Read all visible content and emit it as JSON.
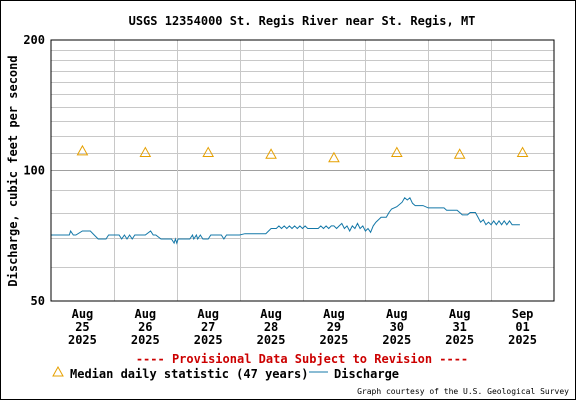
{
  "chart_data": {
    "type": "line",
    "title": "USGS 12354000 St. Regis River near St. Regis, MT",
    "ylabel": "Discharge, cubic feet per second",
    "yscale": "log",
    "ylim": [
      50,
      200
    ],
    "ytick_labels": [
      "50",
      "100",
      "200"
    ],
    "xlim": [
      "2025-08-24T12:00",
      "2025-09-01T12:00"
    ],
    "x_ticks": [
      {
        "month": "Aug",
        "day": "25",
        "year": "2025"
      },
      {
        "month": "Aug",
        "day": "26",
        "year": "2025"
      },
      {
        "month": "Aug",
        "day": "27",
        "year": "2025"
      },
      {
        "month": "Aug",
        "day": "28",
        "year": "2025"
      },
      {
        "month": "Aug",
        "day": "29",
        "year": "2025"
      },
      {
        "month": "Aug",
        "day": "30",
        "year": "2025"
      },
      {
        "month": "Aug",
        "day": "31",
        "year": "2025"
      },
      {
        "month": "Sep",
        "day": "01",
        "year": "2025"
      }
    ],
    "grid": true,
    "provisional_note": "---- Provisional Data Subject to Revision ----",
    "credit": "Graph courtesy of the U.S. Geological Survey",
    "series": [
      {
        "name": "Median daily statistic (47 years)",
        "kind": "markers",
        "marker": "triangle",
        "color": "#e6a000",
        "points": [
          {
            "x": "2025-08-25T00:00",
            "y": 111
          },
          {
            "x": "2025-08-26T00:00",
            "y": 110
          },
          {
            "x": "2025-08-27T00:00",
            "y": 110
          },
          {
            "x": "2025-08-28T00:00",
            "y": 109
          },
          {
            "x": "2025-08-29T00:00",
            "y": 107
          },
          {
            "x": "2025-08-30T00:00",
            "y": 110
          },
          {
            "x": "2025-08-31T00:00",
            "y": 109
          },
          {
            "x": "2025-09-01T00:00",
            "y": 110
          }
        ]
      },
      {
        "name": "Discharge",
        "kind": "line",
        "color": "#1478a8",
        "points": [
          {
            "x": "2025-08-24T12:00",
            "y": 71.0
          },
          {
            "x": "2025-08-24T19:00",
            "y": 71.0
          },
          {
            "x": "2025-08-24T19:30",
            "y": 72.5
          },
          {
            "x": "2025-08-24T20:30",
            "y": 71.0
          },
          {
            "x": "2025-08-24T21:30",
            "y": 71.0
          },
          {
            "x": "2025-08-25T00:00",
            "y": 72.5
          },
          {
            "x": "2025-08-25T03:00",
            "y": 72.5
          },
          {
            "x": "2025-08-25T04:30",
            "y": 71.0
          },
          {
            "x": "2025-08-25T06:00",
            "y": 69.5
          },
          {
            "x": "2025-08-25T09:00",
            "y": 69.5
          },
          {
            "x": "2025-08-25T10:00",
            "y": 71.0
          },
          {
            "x": "2025-08-25T14:00",
            "y": 71.0
          },
          {
            "x": "2025-08-25T15:00",
            "y": 69.5
          },
          {
            "x": "2025-08-25T16:00",
            "y": 71.0
          },
          {
            "x": "2025-08-25T17:00",
            "y": 69.5
          },
          {
            "x": "2025-08-25T18:00",
            "y": 71.0
          },
          {
            "x": "2025-08-25T19:00",
            "y": 69.5
          },
          {
            "x": "2025-08-25T20:00",
            "y": 71.0
          },
          {
            "x": "2025-08-26T00:00",
            "y": 71.0
          },
          {
            "x": "2025-08-26T02:00",
            "y": 72.5
          },
          {
            "x": "2025-08-26T03:00",
            "y": 71.0
          },
          {
            "x": "2025-08-26T04:00",
            "y": 71.0
          },
          {
            "x": "2025-08-26T06:00",
            "y": 69.5
          },
          {
            "x": "2025-08-26T10:00",
            "y": 69.5
          },
          {
            "x": "2025-08-26T11:00",
            "y": 68.0
          },
          {
            "x": "2025-08-26T11:30",
            "y": 69.5
          },
          {
            "x": "2025-08-26T12:00",
            "y": 68.0
          },
          {
            "x": "2025-08-26T12:30",
            "y": 69.5
          },
          {
            "x": "2025-08-26T13:00",
            "y": 69.5
          },
          {
            "x": "2025-08-26T17:00",
            "y": 69.5
          },
          {
            "x": "2025-08-26T18:00",
            "y": 71.0
          },
          {
            "x": "2025-08-26T18:30",
            "y": 69.5
          },
          {
            "x": "2025-08-26T19:30",
            "y": 71.0
          },
          {
            "x": "2025-08-26T20:00",
            "y": 69.5
          },
          {
            "x": "2025-08-26T21:00",
            "y": 71.0
          },
          {
            "x": "2025-08-26T22:00",
            "y": 69.5
          },
          {
            "x": "2025-08-27T00:00",
            "y": 69.5
          },
          {
            "x": "2025-08-27T01:00",
            "y": 71.0
          },
          {
            "x": "2025-08-27T05:00",
            "y": 71.0
          },
          {
            "x": "2025-08-27T06:00",
            "y": 69.5
          },
          {
            "x": "2025-08-27T07:00",
            "y": 71.0
          },
          {
            "x": "2025-08-27T12:00",
            "y": 71.0
          },
          {
            "x": "2025-08-27T14:00",
            "y": 71.5
          },
          {
            "x": "2025-08-27T16:00",
            "y": 71.5
          },
          {
            "x": "2025-08-27T22:00",
            "y": 71.5
          },
          {
            "x": "2025-08-28T00:00",
            "y": 73.5
          },
          {
            "x": "2025-08-28T02:00",
            "y": 73.5
          },
          {
            "x": "2025-08-28T03:00",
            "y": 74.5
          },
          {
            "x": "2025-08-28T04:00",
            "y": 73.5
          },
          {
            "x": "2025-08-28T05:00",
            "y": 74.5
          },
          {
            "x": "2025-08-28T06:00",
            "y": 73.5
          },
          {
            "x": "2025-08-28T07:00",
            "y": 74.5
          },
          {
            "x": "2025-08-28T08:00",
            "y": 73.5
          },
          {
            "x": "2025-08-28T09:00",
            "y": 74.5
          },
          {
            "x": "2025-08-28T10:00",
            "y": 73.5
          },
          {
            "x": "2025-08-28T11:00",
            "y": 74.5
          },
          {
            "x": "2025-08-28T12:00",
            "y": 73.5
          },
          {
            "x": "2025-08-28T13:00",
            "y": 74.5
          },
          {
            "x": "2025-08-28T14:00",
            "y": 73.5
          },
          {
            "x": "2025-08-28T18:00",
            "y": 73.5
          },
          {
            "x": "2025-08-28T19:00",
            "y": 74.5
          },
          {
            "x": "2025-08-28T20:00",
            "y": 73.5
          },
          {
            "x": "2025-08-28T21:00",
            "y": 74.5
          },
          {
            "x": "2025-08-28T22:00",
            "y": 73.5
          },
          {
            "x": "2025-08-28T23:00",
            "y": 74.5
          },
          {
            "x": "2025-08-29T00:00",
            "y": 74.5
          },
          {
            "x": "2025-08-29T01:00",
            "y": 73.5
          },
          {
            "x": "2025-08-29T02:00",
            "y": 74.5
          },
          {
            "x": "2025-08-29T03:00",
            "y": 75.5
          },
          {
            "x": "2025-08-29T04:00",
            "y": 73.5
          },
          {
            "x": "2025-08-29T05:00",
            "y": 74.5
          },
          {
            "x": "2025-08-29T06:00",
            "y": 72.5
          },
          {
            "x": "2025-08-29T07:00",
            "y": 74.5
          },
          {
            "x": "2025-08-29T08:00",
            "y": 73.5
          },
          {
            "x": "2025-08-29T09:00",
            "y": 75.5
          },
          {
            "x": "2025-08-29T10:00",
            "y": 73.5
          },
          {
            "x": "2025-08-29T11:00",
            "y": 74.5
          },
          {
            "x": "2025-08-29T12:00",
            "y": 72.5
          },
          {
            "x": "2025-08-29T13:00",
            "y": 73.5
          },
          {
            "x": "2025-08-29T14:00",
            "y": 72.0
          },
          {
            "x": "2025-08-29T15:00",
            "y": 74.5
          },
          {
            "x": "2025-08-29T16:00",
            "y": 76.0
          },
          {
            "x": "2025-08-29T18:00",
            "y": 78.0
          },
          {
            "x": "2025-08-29T20:00",
            "y": 78.0
          },
          {
            "x": "2025-08-29T21:00",
            "y": 80.0
          },
          {
            "x": "2025-08-29T22:00",
            "y": 81.5
          },
          {
            "x": "2025-08-30T00:00",
            "y": 82.5
          },
          {
            "x": "2025-08-30T02:00",
            "y": 84.5
          },
          {
            "x": "2025-08-30T03:00",
            "y": 86.5
          },
          {
            "x": "2025-08-30T04:00",
            "y": 85.5
          },
          {
            "x": "2025-08-30T05:00",
            "y": 86.5
          },
          {
            "x": "2025-08-30T06:00",
            "y": 84.0
          },
          {
            "x": "2025-08-30T07:00",
            "y": 83.0
          },
          {
            "x": "2025-08-30T10:00",
            "y": 83.0
          },
          {
            "x": "2025-08-30T12:00",
            "y": 82.0
          },
          {
            "x": "2025-08-30T18:00",
            "y": 82.0
          },
          {
            "x": "2025-08-30T19:00",
            "y": 81.0
          },
          {
            "x": "2025-08-30T23:00",
            "y": 81.0
          },
          {
            "x": "2025-08-31T00:00",
            "y": 80.0
          },
          {
            "x": "2025-08-31T01:00",
            "y": 79.0
          },
          {
            "x": "2025-08-31T03:00",
            "y": 79.0
          },
          {
            "x": "2025-08-31T04:00",
            "y": 80.0
          },
          {
            "x": "2025-08-31T06:00",
            "y": 80.0
          },
          {
            "x": "2025-08-31T07:00",
            "y": 78.0
          },
          {
            "x": "2025-08-31T08:00",
            "y": 76.0
          },
          {
            "x": "2025-08-31T09:00",
            "y": 77.0
          },
          {
            "x": "2025-08-31T10:00",
            "y": 75.0
          },
          {
            "x": "2025-08-31T11:00",
            "y": 76.0
          },
          {
            "x": "2025-08-31T12:00",
            "y": 75.0
          },
          {
            "x": "2025-08-31T13:00",
            "y": 76.5
          },
          {
            "x": "2025-08-31T14:00",
            "y": 75.0
          },
          {
            "x": "2025-08-31T15:00",
            "y": 76.5
          },
          {
            "x": "2025-08-31T16:00",
            "y": 75.0
          },
          {
            "x": "2025-08-31T17:00",
            "y": 76.5
          },
          {
            "x": "2025-08-31T18:00",
            "y": 75.0
          },
          {
            "x": "2025-08-31T19:00",
            "y": 76.5
          },
          {
            "x": "2025-08-31T20:00",
            "y": 75.0
          },
          {
            "x": "2025-08-31T23:00",
            "y": 75.0
          }
        ]
      }
    ]
  }
}
